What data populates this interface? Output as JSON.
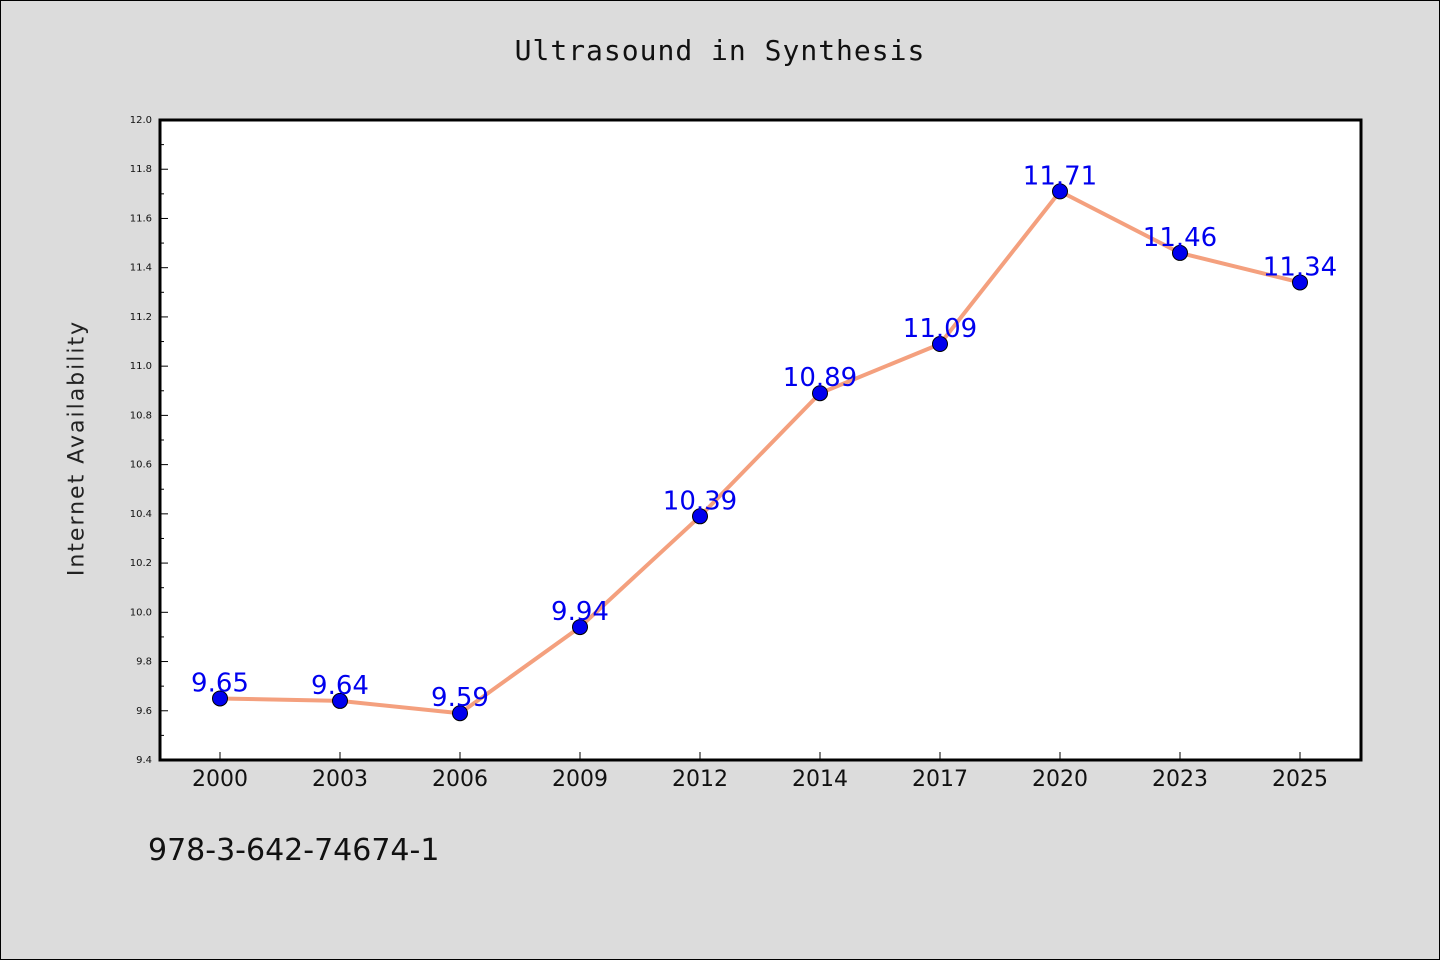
{
  "chart_data": {
    "type": "line",
    "title": "Ultrasound in Synthesis",
    "xlabel": "",
    "ylabel": "Internet Availability",
    "categories": [
      "2000",
      "2003",
      "2006",
      "2009",
      "2012",
      "2014",
      "2017",
      "2020",
      "2023",
      "2025"
    ],
    "series": [
      {
        "values": [
          9.65,
          9.64,
          9.59,
          9.94,
          10.39,
          10.89,
          11.09,
          11.71,
          11.46,
          11.34
        ],
        "data_labels": [
          "9.65",
          "9.64",
          "9.59",
          "9.94",
          "10.39",
          "10.89",
          "11.09",
          "11.71",
          "11.46",
          "11.34"
        ],
        "line_color": "#f4a07e",
        "marker_color": "#0000ee",
        "label_color": "#0000ee"
      }
    ],
    "ylim": [
      9.4,
      12.0
    ],
    "y_ticks": [
      "9.4",
      "9.6",
      "9.8",
      "10.0",
      "10.2",
      "10.4",
      "10.6",
      "10.8",
      "11.0",
      "11.2",
      "11.4",
      "11.6",
      "11.8",
      "12.0"
    ],
    "grid": false,
    "legend": "none"
  },
  "footer": {
    "code": "978-3-642-74674-1"
  },
  "colors": {
    "background": "#dcdcdc",
    "plot_background": "#ffffff"
  }
}
